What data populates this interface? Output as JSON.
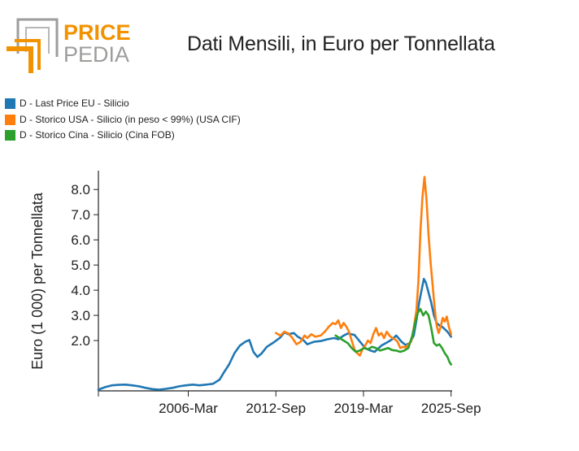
{
  "logo": {
    "line1": "PRICE",
    "line2": "PEDIA",
    "color_orange": "#f39200",
    "color_gray": "#9d9d9c"
  },
  "chart_data": {
    "type": "line",
    "title": "Dati Mensili, in Euro per Tonnellata",
    "xlabel": "",
    "ylabel": "Euro (1 000) per Tonnellata",
    "xlim": [
      1999.5,
      2025.75
    ],
    "ylim": [
      0.0,
      8.75
    ],
    "x_ticks": [
      {
        "value": 1999.5,
        "label": ""
      },
      {
        "value": 2006.17,
        "label": "2006-Mar"
      },
      {
        "value": 2012.67,
        "label": "2012-Sep"
      },
      {
        "value": 2019.17,
        "label": "2019-Mar"
      },
      {
        "value": 2025.67,
        "label": "2025-Sep"
      }
    ],
    "y_ticks": [
      {
        "value": 2.0,
        "label": "2.0"
      },
      {
        "value": 3.0,
        "label": "3.0"
      },
      {
        "value": 4.0,
        "label": "4.0"
      },
      {
        "value": 5.0,
        "label": "5.0"
      },
      {
        "value": 6.0,
        "label": "6.0"
      },
      {
        "value": 7.0,
        "label": "7.0"
      },
      {
        "value": 8.0,
        "label": "8.0"
      }
    ],
    "legend_position": "top-left",
    "series": [
      {
        "name": "D - Last Price EU - Silicio",
        "color": "#1f77b4",
        "points": [
          [
            1999.5,
            0.05
          ],
          [
            2000.0,
            0.15
          ],
          [
            2000.5,
            0.22
          ],
          [
            2001.0,
            0.24
          ],
          [
            2001.5,
            0.25
          ],
          [
            2002.0,
            0.22
          ],
          [
            2002.5,
            0.18
          ],
          [
            2003.0,
            0.12
          ],
          [
            2003.5,
            0.07
          ],
          [
            2004.0,
            0.05
          ],
          [
            2004.5,
            0.08
          ],
          [
            2005.0,
            0.12
          ],
          [
            2005.5,
            0.18
          ],
          [
            2006.0,
            0.22
          ],
          [
            2006.5,
            0.25
          ],
          [
            2007.0,
            0.22
          ],
          [
            2007.5,
            0.25
          ],
          [
            2008.0,
            0.28
          ],
          [
            2008.5,
            0.45
          ],
          [
            2008.8,
            0.72
          ],
          [
            2009.2,
            1.05
          ],
          [
            2009.6,
            1.5
          ],
          [
            2010.0,
            1.8
          ],
          [
            2010.4,
            1.95
          ],
          [
            2010.7,
            2.02
          ],
          [
            2011.0,
            1.55
          ],
          [
            2011.3,
            1.35
          ],
          [
            2011.6,
            1.48
          ],
          [
            2012.0,
            1.75
          ],
          [
            2012.5,
            1.92
          ],
          [
            2013.0,
            2.12
          ],
          [
            2013.3,
            2.32
          ],
          [
            2013.6,
            2.25
          ],
          [
            2014.0,
            2.3
          ],
          [
            2014.3,
            2.15
          ],
          [
            2014.7,
            2.02
          ],
          [
            2015.0,
            1.85
          ],
          [
            2015.5,
            1.95
          ],
          [
            2016.0,
            1.98
          ],
          [
            2016.5,
            2.05
          ],
          [
            2017.0,
            2.1
          ],
          [
            2017.3,
            2.05
          ],
          [
            2017.7,
            2.2
          ],
          [
            2018.0,
            2.28
          ],
          [
            2018.5,
            2.22
          ],
          [
            2019.0,
            1.9
          ],
          [
            2019.3,
            1.7
          ],
          [
            2019.7,
            1.6
          ],
          [
            2020.0,
            1.55
          ],
          [
            2020.5,
            1.8
          ],
          [
            2021.0,
            1.95
          ],
          [
            2021.3,
            2.05
          ],
          [
            2021.6,
            2.2
          ],
          [
            2022.0,
            1.95
          ],
          [
            2022.3,
            1.82
          ],
          [
            2022.6,
            1.9
          ],
          [
            2022.9,
            2.2
          ],
          [
            2023.1,
            2.8
          ],
          [
            2023.3,
            3.5
          ],
          [
            2023.5,
            4.05
          ],
          [
            2023.65,
            4.45
          ],
          [
            2023.8,
            4.3
          ],
          [
            2024.0,
            3.9
          ],
          [
            2024.2,
            3.5
          ],
          [
            2024.4,
            3.0
          ],
          [
            2024.6,
            2.7
          ],
          [
            2024.8,
            2.6
          ],
          [
            2025.0,
            2.55
          ],
          [
            2025.2,
            2.45
          ],
          [
            2025.4,
            2.35
          ],
          [
            2025.67,
            2.15
          ]
        ]
      },
      {
        "name": "D - Storico USA - Silicio (in peso < 99%) (USA CIF)",
        "color": "#ff7f0e",
        "points": [
          [
            2012.67,
            2.3
          ],
          [
            2013.0,
            2.2
          ],
          [
            2013.3,
            2.35
          ],
          [
            2013.6,
            2.28
          ],
          [
            2013.9,
            2.1
          ],
          [
            2014.2,
            1.85
          ],
          [
            2014.5,
            1.95
          ],
          [
            2014.8,
            2.2
          ],
          [
            2015.0,
            2.1
          ],
          [
            2015.3,
            2.25
          ],
          [
            2015.6,
            2.15
          ],
          [
            2016.0,
            2.2
          ],
          [
            2016.3,
            2.35
          ],
          [
            2016.6,
            2.55
          ],
          [
            2016.9,
            2.7
          ],
          [
            2017.1,
            2.65
          ],
          [
            2017.3,
            2.8
          ],
          [
            2017.5,
            2.5
          ],
          [
            2017.7,
            2.7
          ],
          [
            2017.9,
            2.55
          ],
          [
            2018.1,
            2.35
          ],
          [
            2018.3,
            2.0
          ],
          [
            2018.5,
            1.65
          ],
          [
            2018.7,
            1.5
          ],
          [
            2018.9,
            1.4
          ],
          [
            2019.1,
            1.65
          ],
          [
            2019.3,
            1.8
          ],
          [
            2019.5,
            2.0
          ],
          [
            2019.7,
            1.9
          ],
          [
            2019.9,
            2.25
          ],
          [
            2020.1,
            2.5
          ],
          [
            2020.3,
            2.2
          ],
          [
            2020.5,
            2.3
          ],
          [
            2020.7,
            2.1
          ],
          [
            2020.9,
            2.35
          ],
          [
            2021.1,
            2.2
          ],
          [
            2021.3,
            2.1
          ],
          [
            2021.5,
            2.05
          ],
          [
            2021.7,
            1.95
          ],
          [
            2021.9,
            1.7
          ],
          [
            2022.1,
            1.75
          ],
          [
            2022.3,
            1.72
          ],
          [
            2022.5,
            1.85
          ],
          [
            2022.7,
            1.95
          ],
          [
            2022.9,
            2.5
          ],
          [
            2023.1,
            3.2
          ],
          [
            2023.25,
            4.4
          ],
          [
            2023.4,
            6.4
          ],
          [
            2023.55,
            7.7
          ],
          [
            2023.7,
            8.5
          ],
          [
            2023.85,
            7.6
          ],
          [
            2024.0,
            6.2
          ],
          [
            2024.15,
            5.1
          ],
          [
            2024.3,
            4.2
          ],
          [
            2024.45,
            3.3
          ],
          [
            2024.6,
            2.6
          ],
          [
            2024.75,
            2.3
          ],
          [
            2024.9,
            2.55
          ],
          [
            2025.05,
            2.9
          ],
          [
            2025.2,
            2.75
          ],
          [
            2025.35,
            2.95
          ],
          [
            2025.5,
            2.55
          ],
          [
            2025.67,
            2.25
          ]
        ]
      },
      {
        "name": "D - Storico Cina - Silicio (Cina FOB)",
        "color": "#2ca02c",
        "points": [
          [
            2017.1,
            2.2
          ],
          [
            2017.4,
            2.1
          ],
          [
            2017.7,
            2.0
          ],
          [
            2018.0,
            1.9
          ],
          [
            2018.3,
            1.7
          ],
          [
            2018.6,
            1.55
          ],
          [
            2018.9,
            1.6
          ],
          [
            2019.2,
            1.7
          ],
          [
            2019.5,
            1.65
          ],
          [
            2019.8,
            1.75
          ],
          [
            2020.1,
            1.7
          ],
          [
            2020.4,
            1.6
          ],
          [
            2020.7,
            1.65
          ],
          [
            2021.0,
            1.7
          ],
          [
            2021.3,
            1.62
          ],
          [
            2021.6,
            1.6
          ],
          [
            2021.9,
            1.55
          ],
          [
            2022.2,
            1.6
          ],
          [
            2022.5,
            1.7
          ],
          [
            2022.8,
            2.2
          ],
          [
            2023.0,
            2.7
          ],
          [
            2023.2,
            3.1
          ],
          [
            2023.4,
            3.25
          ],
          [
            2023.6,
            3.0
          ],
          [
            2023.8,
            3.15
          ],
          [
            2024.0,
            3.0
          ],
          [
            2024.2,
            2.5
          ],
          [
            2024.4,
            1.9
          ],
          [
            2024.6,
            1.8
          ],
          [
            2024.8,
            1.85
          ],
          [
            2025.0,
            1.7
          ],
          [
            2025.2,
            1.5
          ],
          [
            2025.4,
            1.35
          ],
          [
            2025.55,
            1.15
          ],
          [
            2025.67,
            1.05
          ]
        ]
      }
    ]
  }
}
